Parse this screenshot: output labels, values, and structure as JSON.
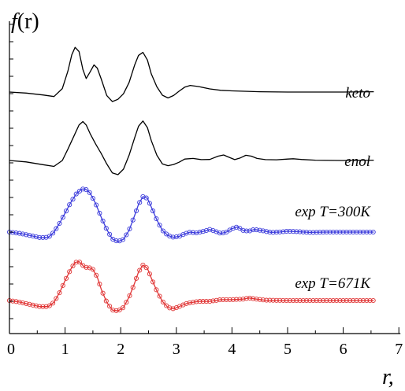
{
  "chart_data": {
    "type": "line",
    "title": "",
    "ylabel": "f(r)",
    "xlabel": "r,",
    "xlim": [
      0,
      7
    ],
    "x_ticks": [
      "0",
      "1",
      "2",
      "3",
      "4",
      "5",
      "6",
      "7"
    ],
    "y_ticks_labeled": false,
    "grid": false,
    "legend": "none",
    "series": [
      {
        "name": "keto",
        "color": "#000000",
        "markers": false,
        "x": [
          0.0,
          0.3,
          0.6,
          0.8,
          0.95,
          1.05,
          1.12,
          1.18,
          1.25,
          1.32,
          1.38,
          1.45,
          1.52,
          1.58,
          1.65,
          1.75,
          1.85,
          1.95,
          2.05,
          2.15,
          2.25,
          2.32,
          2.4,
          2.48,
          2.55,
          2.65,
          2.75,
          2.85,
          2.95,
          3.05,
          3.15,
          3.25,
          3.4,
          3.6,
          3.8,
          4.0,
          4.5,
          5.0,
          5.5,
          6.0,
          6.55
        ],
        "y": [
          0.0,
          -0.06,
          -0.17,
          -0.26,
          0.2,
          1.2,
          2.15,
          2.58,
          2.34,
          1.3,
          0.78,
          1.17,
          1.57,
          1.38,
          0.75,
          -0.2,
          -0.55,
          -0.42,
          -0.1,
          0.55,
          1.55,
          2.12,
          2.29,
          1.85,
          1.05,
          0.3,
          -0.18,
          -0.34,
          -0.2,
          0.05,
          0.28,
          0.38,
          0.32,
          0.18,
          0.1,
          0.07,
          0.02,
          0.0,
          0.0,
          0.0,
          0.02
        ]
      },
      {
        "name": "enol",
        "color": "#000000",
        "markers": false,
        "x": [
          0.0,
          0.3,
          0.6,
          0.8,
          0.95,
          1.05,
          1.15,
          1.25,
          1.32,
          1.38,
          1.45,
          1.55,
          1.65,
          1.75,
          1.85,
          1.95,
          2.05,
          2.15,
          2.25,
          2.32,
          2.4,
          2.48,
          2.55,
          2.65,
          2.75,
          2.85,
          2.95,
          3.05,
          3.15,
          3.3,
          3.45,
          3.6,
          3.75,
          3.85,
          3.95,
          4.05,
          4.15,
          4.25,
          4.35,
          4.45,
          4.6,
          4.8,
          5.0,
          5.1,
          5.25,
          5.5,
          6.0,
          6.55
        ],
        "y": [
          0.0,
          -0.08,
          -0.24,
          -0.34,
          0.0,
          0.65,
          1.35,
          2.05,
          2.25,
          2.05,
          1.55,
          0.95,
          0.4,
          -0.2,
          -0.72,
          -0.82,
          -0.5,
          0.3,
          1.3,
          1.98,
          2.28,
          1.9,
          1.15,
          0.3,
          -0.2,
          -0.3,
          -0.23,
          -0.1,
          0.08,
          0.12,
          0.05,
          0.06,
          0.25,
          0.32,
          0.18,
          0.05,
          0.15,
          0.3,
          0.25,
          0.12,
          0.05,
          0.04,
          0.08,
          0.1,
          0.06,
          0.02,
          0.0,
          0.02
        ]
      },
      {
        "name": "exp T=300K",
        "color": "#3a3adb",
        "markers": true,
        "x": [
          0.0,
          0.2,
          0.4,
          0.55,
          0.7,
          0.8,
          0.9,
          1.0,
          1.1,
          1.2,
          1.3,
          1.35,
          1.4,
          1.45,
          1.55,
          1.65,
          1.75,
          1.85,
          1.95,
          2.05,
          2.15,
          2.25,
          2.32,
          2.4,
          2.48,
          2.55,
          2.65,
          2.75,
          2.85,
          2.95,
          3.05,
          3.15,
          3.25,
          3.35,
          3.5,
          3.6,
          3.7,
          3.8,
          3.9,
          4.0,
          4.1,
          4.2,
          4.3,
          4.4,
          4.55,
          4.7,
          4.85,
          5.0,
          5.2,
          5.4,
          5.7,
          6.0,
          6.55
        ],
        "y": [
          0.0,
          -0.08,
          -0.22,
          -0.32,
          -0.3,
          0.0,
          0.5,
          1.1,
          1.7,
          2.2,
          2.48,
          2.5,
          2.42,
          2.25,
          1.65,
          0.85,
          0.15,
          -0.4,
          -0.55,
          -0.42,
          0.1,
          0.95,
          1.6,
          2.05,
          1.95,
          1.45,
          0.7,
          0.1,
          -0.2,
          -0.3,
          -0.25,
          -0.1,
          0.0,
          -0.05,
          0.05,
          0.15,
          0.05,
          -0.08,
          0.0,
          0.2,
          0.3,
          0.1,
          0.05,
          0.15,
          0.08,
          -0.02,
          0.0,
          0.05,
          0.02,
          -0.02,
          0.0,
          0.0,
          0.0
        ]
      },
      {
        "name": "exp T=671K",
        "color": "#e03535",
        "markers": true,
        "x": [
          0.0,
          0.2,
          0.4,
          0.55,
          0.7,
          0.8,
          0.9,
          1.0,
          1.1,
          1.18,
          1.25,
          1.3,
          1.35,
          1.42,
          1.5,
          1.58,
          1.65,
          1.75,
          1.85,
          1.95,
          2.05,
          2.15,
          2.25,
          2.32,
          2.4,
          2.48,
          2.55,
          2.65,
          2.75,
          2.85,
          2.95,
          3.05,
          3.2,
          3.4,
          3.6,
          3.8,
          4.0,
          4.2,
          4.3,
          4.4,
          4.6,
          5.0,
          5.5,
          6.0,
          6.55
        ],
        "y": [
          0.0,
          -0.1,
          -0.25,
          -0.35,
          -0.35,
          -0.1,
          0.45,
          1.15,
          1.8,
          2.2,
          2.25,
          2.1,
          1.92,
          1.92,
          1.8,
          1.35,
          0.65,
          -0.1,
          -0.55,
          -0.6,
          -0.4,
          0.2,
          1.0,
          1.65,
          2.05,
          1.85,
          1.3,
          0.55,
          -0.05,
          -0.4,
          -0.48,
          -0.35,
          -0.15,
          -0.05,
          -0.05,
          0.05,
          0.05,
          0.08,
          0.15,
          0.1,
          0.02,
          0.0,
          0.0,
          0.0,
          0.0
        ]
      }
    ]
  }
}
